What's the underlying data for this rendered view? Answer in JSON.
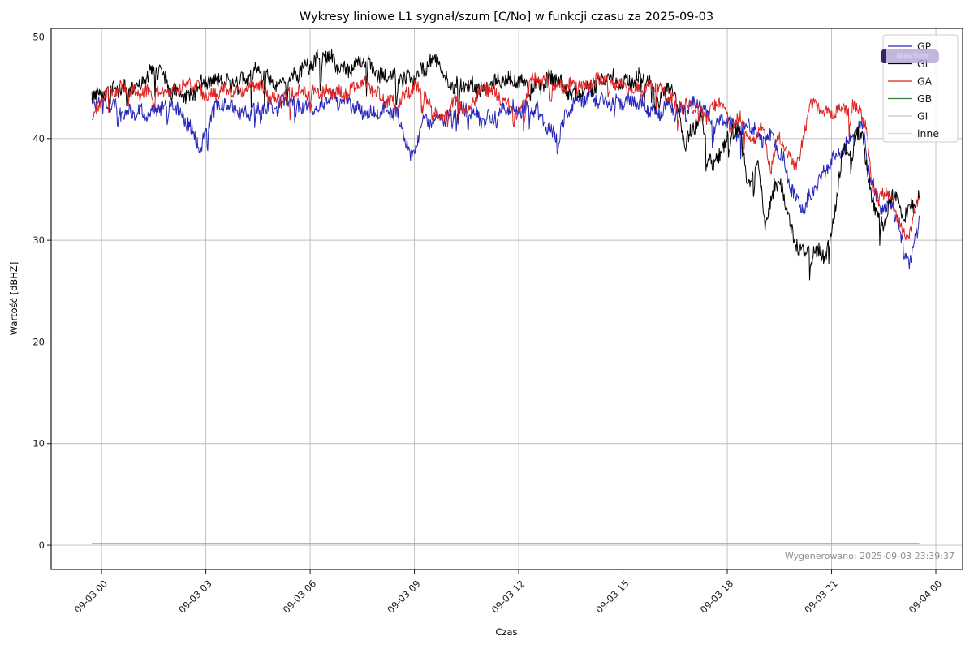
{
  "title": "Wykresy liniowe L1 sygnał/szum [C/No] w funkcji czasu za 2025-09-03",
  "watermark": "Wygenerowano: 2025-09-03 23:39:37",
  "badge": {
    "text": "NavSim",
    "bar_color": "#3a2166",
    "fill_color": "#b1a2d4",
    "text_color": "#f0eafc"
  },
  "chart_data": {
    "type": "line",
    "title": "Wykresy liniowe L1 sygnał/szum [C/No] w funkcji czasu za 2025-09-03",
    "xlabel": "Czas",
    "ylabel": "Wartość [dBHZ]",
    "grid": true,
    "legend_position": "upper right",
    "xlim_hours": [
      -1.45,
      24.77
    ],
    "ylim": [
      -2.39,
      50.84
    ],
    "x_ticks": {
      "hours": [
        0,
        3,
        6,
        9,
        12,
        15,
        18,
        21,
        24
      ],
      "labels": [
        "09-03 00",
        "09-03 03",
        "09-03 06",
        "09-03 09",
        "09-03 12",
        "09-03 15",
        "09-03 18",
        "09-03 21",
        "09-04 00"
      ]
    },
    "y_ticks": [
      0,
      10,
      20,
      30,
      40,
      50
    ],
    "grid_color": "#bcbcbc",
    "spine_color": "#1a1a1a",
    "legend_border_color": "#cccccc",
    "series": [
      {
        "name": "GP",
        "color": "#2626bb",
        "width": 1,
        "amp": 0.8,
        "spike": 2.4,
        "spike_prob": 0.02,
        "seed": 1337,
        "keypoints": [
          [
            -0.28,
            43.4
          ],
          [
            0,
            43.6
          ],
          [
            0.5,
            42.6
          ],
          [
            1,
            43.2
          ],
          [
            1.5,
            42.4
          ],
          [
            2,
            43.1
          ],
          [
            2.5,
            41.8
          ],
          [
            2.85,
            39.4
          ],
          [
            3.2,
            42.6
          ],
          [
            3.5,
            43.2
          ],
          [
            4,
            42.6
          ],
          [
            4.5,
            43.4
          ],
          [
            5,
            42.7
          ],
          [
            5.5,
            43.6
          ],
          [
            6,
            43.1
          ],
          [
            6.5,
            43.8
          ],
          [
            7,
            43.4
          ],
          [
            7.5,
            42.7
          ],
          [
            8,
            43.2
          ],
          [
            8.5,
            42.1
          ],
          [
            8.9,
            37.9
          ],
          [
            9.2,
            41.6
          ],
          [
            9.5,
            42.4
          ],
          [
            10,
            41.8
          ],
          [
            10.5,
            42.6
          ],
          [
            11,
            42.1
          ],
          [
            11.5,
            43.0
          ],
          [
            12,
            42.4
          ],
          [
            12.5,
            43.2
          ],
          [
            13.1,
            40.3
          ],
          [
            13.5,
            43.0
          ],
          [
            14,
            43.8
          ],
          [
            14.5,
            44.2
          ],
          [
            15,
            43.6
          ],
          [
            15.5,
            43.2
          ],
          [
            16,
            42.7
          ],
          [
            16.3,
            44.0
          ],
          [
            16.7,
            42.6
          ],
          [
            17.2,
            43.2
          ],
          [
            17.5,
            41.6
          ],
          [
            18,
            42.2
          ],
          [
            18.3,
            40.6
          ],
          [
            18.6,
            41.2
          ],
          [
            19,
            39.6
          ],
          [
            19.3,
            40.4
          ],
          [
            19.6,
            38.4
          ],
          [
            19.9,
            34.8
          ],
          [
            20.2,
            33.1
          ],
          [
            20.5,
            34.6
          ],
          [
            20.8,
            36.6
          ],
          [
            21.1,
            38.6
          ],
          [
            21.5,
            40.0
          ],
          [
            21.9,
            41.2
          ],
          [
            22.1,
            35.6
          ],
          [
            22.3,
            34.0
          ],
          [
            22.5,
            32.6
          ],
          [
            22.7,
            34.0
          ],
          [
            22.9,
            31.9
          ],
          [
            23.1,
            29.2
          ],
          [
            23.25,
            27.6
          ],
          [
            23.4,
            30.6
          ],
          [
            23.53,
            32.0
          ]
        ]
      },
      {
        "name": "GL",
        "color": "#000000",
        "width": 1,
        "amp": 0.85,
        "spike": 2.8,
        "spike_prob": 0.02,
        "seed": 42,
        "keypoints": [
          [
            -0.28,
            44.2
          ],
          [
            0,
            44.8
          ],
          [
            0.5,
            45.2
          ],
          [
            1,
            44.6
          ],
          [
            1.7,
            47.2
          ],
          [
            2,
            45.0
          ],
          [
            2.5,
            43.7
          ],
          [
            3,
            45.4
          ],
          [
            3.5,
            46.2
          ],
          [
            4,
            45.6
          ],
          [
            4.5,
            46.3
          ],
          [
            5,
            45.4
          ],
          [
            5.5,
            46.6
          ],
          [
            6,
            46.8
          ],
          [
            6.5,
            48.0
          ],
          [
            7,
            47.2
          ],
          [
            7.5,
            47.6
          ],
          [
            8,
            45.6
          ],
          [
            8.5,
            46.4
          ],
          [
            9,
            46.0
          ],
          [
            9.6,
            47.6
          ],
          [
            10,
            45.2
          ],
          [
            10.5,
            45.8
          ],
          [
            11,
            44.6
          ],
          [
            11.5,
            45.4
          ],
          [
            12,
            46.2
          ],
          [
            12.5,
            45.0
          ],
          [
            13,
            45.6
          ],
          [
            13.5,
            44.6
          ],
          [
            14,
            45.2
          ],
          [
            14.5,
            45.6
          ],
          [
            15,
            45.2
          ],
          [
            15.6,
            46.8
          ],
          [
            16,
            43.8
          ],
          [
            16.4,
            44.6
          ],
          [
            16.8,
            39.6
          ],
          [
            17.2,
            42.8
          ],
          [
            17.6,
            37.0
          ],
          [
            18,
            39.8
          ],
          [
            18.3,
            41.0
          ],
          [
            18.6,
            35.8
          ],
          [
            18.9,
            38.4
          ],
          [
            19.1,
            31.3
          ],
          [
            19.35,
            35.6
          ],
          [
            19.6,
            34.6
          ],
          [
            19.9,
            29.6
          ],
          [
            20.2,
            28.8
          ],
          [
            20.5,
            29.3
          ],
          [
            20.8,
            29.0
          ],
          [
            21,
            30.4
          ],
          [
            21.3,
            38.0
          ],
          [
            21.6,
            39.2
          ],
          [
            21.9,
            40.6
          ],
          [
            22.05,
            36.0
          ],
          [
            22.2,
            34.0
          ],
          [
            22.5,
            31.6
          ],
          [
            22.7,
            34.6
          ],
          [
            22.9,
            33.4
          ],
          [
            23.1,
            31.8
          ],
          [
            23.3,
            33.0
          ],
          [
            23.53,
            34.4
          ]
        ]
      },
      {
        "name": "GA",
        "color": "#dd2222",
        "width": 1,
        "amp": 0.7,
        "spike": 2.2,
        "spike_prob": 0.014,
        "seed": 2024,
        "keypoints": [
          [
            -0.28,
            42.0
          ],
          [
            0,
            44.4
          ],
          [
            0.5,
            44.8
          ],
          [
            1,
            44.2
          ],
          [
            1.5,
            45.0
          ],
          [
            2,
            44.6
          ],
          [
            2.5,
            45.2
          ],
          [
            3,
            44.4
          ],
          [
            3.5,
            45.0
          ],
          [
            4,
            44.4
          ],
          [
            4.5,
            45.2
          ],
          [
            5,
            44.1
          ],
          [
            5.5,
            44.6
          ],
          [
            6,
            44.2
          ],
          [
            6.5,
            45.0
          ],
          [
            7,
            44.6
          ],
          [
            7.5,
            45.2
          ],
          [
            8,
            44.2
          ],
          [
            8.5,
            43.8
          ],
          [
            9,
            45.0
          ],
          [
            9.8,
            42.0
          ],
          [
            10.2,
            44.6
          ],
          [
            10.5,
            42.7
          ],
          [
            11,
            44.8
          ],
          [
            11.5,
            44.2
          ],
          [
            12,
            42.5
          ],
          [
            12.4,
            45.6
          ],
          [
            13,
            45.2
          ],
          [
            13.5,
            45.6
          ],
          [
            14,
            45.2
          ],
          [
            14.5,
            45.6
          ],
          [
            15,
            45.4
          ],
          [
            15.5,
            45.0
          ],
          [
            16,
            44.8
          ],
          [
            16.5,
            43.4
          ],
          [
            17,
            43.6
          ],
          [
            17.4,
            42.0
          ],
          [
            17.8,
            43.4
          ],
          [
            18.1,
            41.0
          ],
          [
            18.4,
            42.4
          ],
          [
            18.7,
            39.6
          ],
          [
            19,
            41.4
          ],
          [
            19.25,
            36.8
          ],
          [
            19.5,
            39.8
          ],
          [
            19.9,
            37.4
          ],
          [
            20.1,
            38.6
          ],
          [
            20.4,
            44.0
          ],
          [
            20.7,
            42.6
          ],
          [
            21,
            42.2
          ],
          [
            21.4,
            42.8
          ],
          [
            21.8,
            43.4
          ],
          [
            22,
            41.0
          ],
          [
            22.15,
            36.2
          ],
          [
            22.35,
            33.8
          ],
          [
            22.55,
            34.8
          ],
          [
            22.75,
            33.2
          ],
          [
            23,
            31.2
          ],
          [
            23.2,
            29.8
          ],
          [
            23.35,
            33.0
          ],
          [
            23.53,
            34.2
          ]
        ]
      },
      {
        "name": "GB",
        "color": "#3a7d3a",
        "width": 1.2,
        "amp": 0,
        "spike": 0,
        "spike_prob": 0,
        "seed": 3,
        "keypoints": [
          [
            -0.28,
            0.18
          ],
          [
            23.53,
            0.18
          ]
        ]
      },
      {
        "name": "GI",
        "color": "#b9cad8",
        "width": 1.2,
        "amp": 0,
        "spike": 0,
        "spike_prob": 0,
        "seed": 4,
        "keypoints": [
          [
            -0.28,
            0.15
          ],
          [
            23.53,
            0.15
          ]
        ]
      },
      {
        "name": "inne",
        "color": "#f3d5a0",
        "width": 1.2,
        "amp": 0,
        "spike": 0,
        "spike_prob": 0,
        "seed": 5,
        "keypoints": [
          [
            -0.28,
            0.12
          ],
          [
            23.53,
            0.12
          ]
        ]
      }
    ],
    "legend_order": [
      "GP",
      "GL",
      "GA",
      "GB",
      "GI",
      "inne"
    ]
  }
}
